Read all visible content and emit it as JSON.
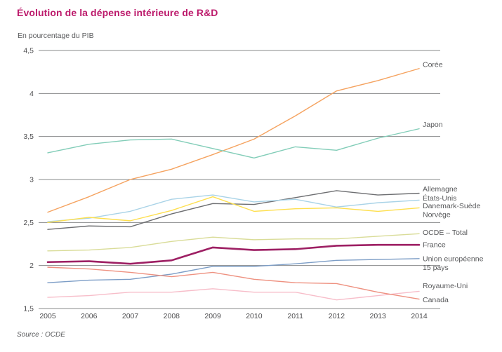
{
  "header": {
    "title": "Évolution de la dépense intérieure de R&D"
  },
  "footer": {
    "source": "Source : OCDE"
  },
  "chart_data": {
    "type": "line",
    "title": "Évolution de la dépense intérieure de R&D",
    "unit_label": "En pourcentage du PIB",
    "source": "Source : OCDE",
    "xlabel": "",
    "ylabel": "En pourcentage du PIB",
    "x": [
      2005,
      2006,
      2007,
      2008,
      2009,
      2010,
      2011,
      2012,
      2013,
      2014
    ],
    "ylim": [
      1.5,
      4.5
    ],
    "grid": "horizontal",
    "legend_position": "right-of-line-ends",
    "yticks": [
      {
        "value": 4.5,
        "label": "4,5"
      },
      {
        "value": 4.0,
        "label": "4"
      },
      {
        "value": 3.5,
        "label": "3,5"
      },
      {
        "value": 3.0,
        "label": "3"
      },
      {
        "value": 2.5,
        "label": "2,5"
      },
      {
        "value": 2.0,
        "label": "2"
      },
      {
        "value": 1.5,
        "label": "1,5"
      }
    ],
    "series": [
      {
        "id": "coree",
        "name": "Corée",
        "label_lines": [
          "Corée"
        ],
        "color": "#f5a360",
        "width": 1.4,
        "label_dy": -6,
        "values": [
          2.62,
          2.8,
          3.0,
          3.12,
          3.29,
          3.47,
          3.74,
          4.03,
          4.15,
          4.29
        ]
      },
      {
        "id": "japon",
        "name": "Japon",
        "label_lines": [
          "Japon"
        ],
        "color": "#82cdb8",
        "width": 1.4,
        "label_dy": -6,
        "values": [
          3.31,
          3.41,
          3.46,
          3.47,
          3.36,
          3.25,
          3.38,
          3.34,
          3.48,
          3.59
        ]
      },
      {
        "id": "allemagne",
        "name": "Allemagne",
        "label_lines": [
          "Allemagne"
        ],
        "color": "#6d6e71",
        "width": 1.4,
        "label_dy": -6,
        "values": [
          2.42,
          2.46,
          2.45,
          2.6,
          2.72,
          2.71,
          2.79,
          2.87,
          2.82,
          2.84
        ]
      },
      {
        "id": "etats-unis",
        "name": "États-Unis",
        "label_lines": [
          "États-Unis"
        ],
        "color": "#a9d3e7",
        "width": 1.4,
        "label_dy": -3,
        "values": [
          2.51,
          2.55,
          2.63,
          2.77,
          2.82,
          2.74,
          2.77,
          2.68,
          2.73,
          2.76
        ]
      },
      {
        "id": "danemark-suede-norvege",
        "name": "Danemark-Suède-Norvège",
        "label_lines": [
          "Danemark-Suède",
          "Norvège"
        ],
        "color": "#fedf4e",
        "width": 1.4,
        "label_dy": -3,
        "values": [
          2.5,
          2.56,
          2.52,
          2.64,
          2.8,
          2.63,
          2.66,
          2.67,
          2.63,
          2.67
        ]
      },
      {
        "id": "ocde-total",
        "name": "OCDE – Total",
        "label_lines": [
          "OCDE – Total"
        ],
        "color": "#d9dc98",
        "width": 1.4,
        "label_dy": -2,
        "values": [
          2.17,
          2.18,
          2.21,
          2.28,
          2.33,
          2.3,
          2.31,
          2.31,
          2.34,
          2.37
        ]
      },
      {
        "id": "france",
        "name": "France",
        "label_lines": [
          "France"
        ],
        "color": "#9d1f63",
        "width": 2.6,
        "label_dy": 0,
        "values": [
          2.04,
          2.05,
          2.02,
          2.06,
          2.21,
          2.18,
          2.19,
          2.23,
          2.24,
          2.24
        ]
      },
      {
        "id": "union-europeenne-15-pays",
        "name": "Union européenne 15 pays",
        "label_lines": [
          "Union européenne",
          "15 pays"
        ],
        "color": "#7c9dc6",
        "width": 1.4,
        "label_dy": 0,
        "values": [
          1.8,
          1.83,
          1.84,
          1.9,
          1.99,
          1.99,
          2.02,
          2.06,
          2.07,
          2.08
        ]
      },
      {
        "id": "royaume-uni",
        "name": "Royaume-Uni",
        "label_lines": [
          "Royaume-Uni"
        ],
        "color": "#f7bdc9",
        "width": 1.4,
        "label_dy": -8,
        "values": [
          1.63,
          1.65,
          1.69,
          1.69,
          1.73,
          1.69,
          1.69,
          1.6,
          1.65,
          1.7
        ]
      },
      {
        "id": "canada",
        "name": "Canada",
        "label_lines": [
          "Canada"
        ],
        "color": "#ee9180",
        "width": 1.4,
        "label_dy": 1,
        "values": [
          1.98,
          1.96,
          1.92,
          1.87,
          1.92,
          1.84,
          1.8,
          1.79,
          1.69,
          1.61
        ]
      }
    ]
  }
}
